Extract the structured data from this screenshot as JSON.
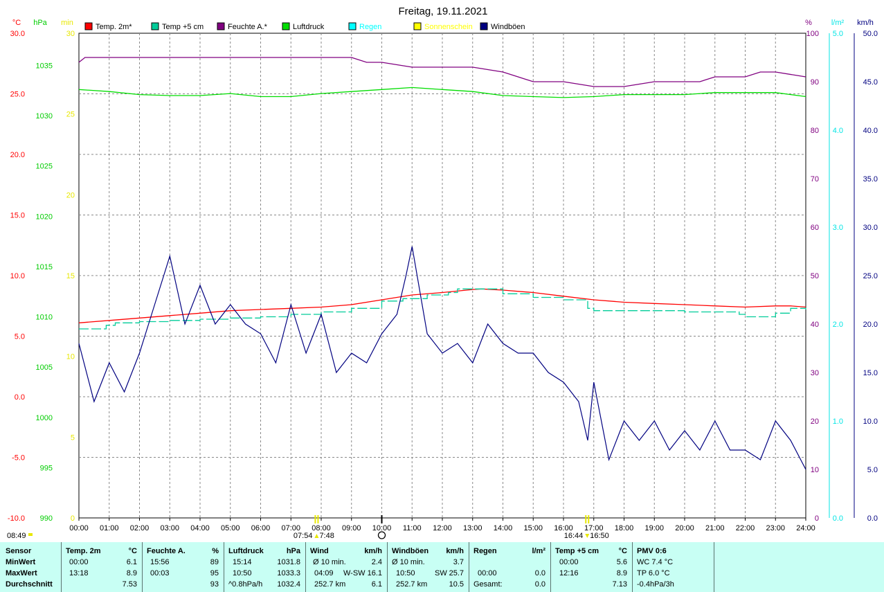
{
  "chart_data": {
    "type": "line",
    "title": "Freitag, 19.11.2021",
    "x_ticks": [
      "00:00",
      "01:00",
      "02:00",
      "03:00",
      "04:00",
      "05:00",
      "06:00",
      "07:00",
      "08:00",
      "09:00",
      "10:00",
      "11:00",
      "12:00",
      "13:00",
      "14:00",
      "15:00",
      "16:00",
      "17:00",
      "18:00",
      "19:00",
      "20:00",
      "21:00",
      "22:00",
      "23:00",
      "24:00"
    ],
    "axes": {
      "temp": {
        "unit": "°C",
        "color": "#ff0000",
        "min": -10,
        "max": 30,
        "ticks": [
          "30.0",
          "25.0",
          "20.0",
          "15.0",
          "10.0",
          "5.0",
          "0.0",
          "-5.0",
          "-10.0"
        ]
      },
      "press": {
        "unit": "hPa",
        "color": "#00cc00",
        "min": 990,
        "max": 1038.2,
        "ticks": [
          "1035",
          "1030",
          "1025",
          "1020",
          "1015",
          "1010",
          "1005",
          "1000",
          "995",
          "990"
        ]
      },
      "min": {
        "unit": "min",
        "color": "#e8e800",
        "min": 0,
        "max": 30,
        "ticks": [
          "30",
          "25",
          "20",
          "15",
          "10",
          "5",
          "0"
        ]
      },
      "hum": {
        "unit": "%",
        "color": "#800080",
        "min": 0,
        "max": 100,
        "ticks": [
          "100",
          "90",
          "80",
          "70",
          "60",
          "50",
          "40",
          "30",
          "20",
          "10",
          "0"
        ]
      },
      "rain": {
        "unit": "l/m²",
        "color": "#00e5e5",
        "min": 0,
        "max": 5,
        "ticks": [
          "5.0",
          "4.0",
          "3.0",
          "2.0",
          "1.0",
          "0.0"
        ]
      },
      "wind": {
        "unit": "km/h",
        "color": "#000080",
        "min": 0,
        "max": 50,
        "ticks": [
          "50.0",
          "45.0",
          "40.0",
          "35.0",
          "30.0",
          "25.0",
          "20.0",
          "15.0",
          "10.0",
          "5.0",
          "0.0"
        ]
      }
    },
    "legend": [
      {
        "name": "Temp. 2m*",
        "color": "#ff0000"
      },
      {
        "name": "Temp +5 cm",
        "color": "#00cc99"
      },
      {
        "name": "Feuchte A.*",
        "color": "#800080"
      },
      {
        "name": "Luftdruck",
        "color": "#00dd00"
      },
      {
        "name": "Regen",
        "color": "#00ffff"
      },
      {
        "name": "Sonnenschein",
        "color": "#ffff00"
      },
      {
        "name": "Windböen",
        "color": "#000080"
      }
    ],
    "series": [
      {
        "name": "Temp. 2m*",
        "axis": "temp",
        "x_hours": [
          0,
          1,
          2,
          3,
          4,
          5,
          6,
          7,
          8,
          9,
          10,
          11,
          12,
          13,
          13.3,
          14,
          15,
          16,
          17,
          18,
          19,
          20,
          21,
          22,
          23,
          23.5,
          24
        ],
        "values": [
          6.1,
          6.3,
          6.5,
          6.7,
          6.9,
          7.1,
          7.2,
          7.3,
          7.4,
          7.6,
          8.0,
          8.4,
          8.6,
          8.85,
          8.9,
          8.8,
          8.6,
          8.3,
          8.0,
          7.8,
          7.7,
          7.6,
          7.5,
          7.4,
          7.5,
          7.5,
          7.4
        ]
      },
      {
        "name": "Temp +5 cm",
        "axis": "temp",
        "step": true,
        "x_hours": [
          0,
          0.9,
          1.2,
          2,
          3,
          4,
          5,
          6,
          7,
          8,
          9,
          10,
          10.7,
          11.5,
          12.2,
          12.5,
          13,
          14,
          15,
          16,
          16.8,
          17,
          18,
          19,
          20,
          21,
          21.8,
          22,
          23,
          23.5,
          24
        ],
        "values": [
          5.6,
          5.9,
          6.1,
          6.2,
          6.3,
          6.4,
          6.5,
          6.6,
          6.8,
          7.0,
          7.3,
          7.9,
          8.1,
          8.4,
          8.6,
          8.9,
          8.9,
          8.5,
          8.2,
          8.0,
          7.3,
          7.1,
          7.1,
          7.1,
          7.0,
          7.0,
          6.8,
          6.6,
          6.9,
          7.3,
          7.2
        ]
      },
      {
        "name": "Feuchte A.*",
        "axis": "hum",
        "x_hours": [
          0,
          0.2,
          1,
          2,
          3,
          4,
          5,
          6,
          7,
          8,
          9,
          9.5,
          10,
          11,
          12,
          13,
          14,
          14.5,
          15,
          16,
          17,
          18,
          19,
          20,
          20.5,
          21,
          22,
          22.5,
          23,
          24
        ],
        "values": [
          94,
          95,
          95,
          95,
          95,
          95,
          95,
          95,
          95,
          95,
          95,
          94,
          94,
          93,
          93,
          93,
          92,
          91,
          90,
          90,
          89,
          89,
          90,
          90,
          90,
          91,
          91,
          92,
          92,
          91
        ]
      },
      {
        "name": "Luftdruck",
        "axis": "press",
        "x_hours": [
          0,
          1,
          2,
          3,
          4,
          5,
          6,
          7,
          8,
          9,
          10,
          11,
          12,
          13,
          14,
          15,
          16,
          17,
          18,
          19,
          20,
          21,
          22,
          23,
          24
        ],
        "values": [
          1032.6,
          1032.4,
          1032.1,
          1032.0,
          1032.0,
          1032.2,
          1031.9,
          1031.9,
          1032.2,
          1032.4,
          1032.6,
          1032.8,
          1032.6,
          1032.4,
          1032.0,
          1031.9,
          1031.8,
          1031.9,
          1032.1,
          1032.1,
          1032.1,
          1032.3,
          1032.3,
          1032.3,
          1031.9
        ]
      },
      {
        "name": "Windböen",
        "axis": "wind",
        "x_hours": [
          0,
          0.5,
          1,
          1.5,
          2,
          2.5,
          3,
          3.5,
          4,
          4.5,
          5,
          5.5,
          6,
          6.5,
          7,
          7.5,
          8,
          8.5,
          9,
          9.5,
          10,
          10.5,
          10.8,
          11,
          11.5,
          12,
          12.5,
          13,
          13.5,
          14,
          14.5,
          15,
          15.5,
          16,
          16.5,
          16.8,
          17,
          17.5,
          18,
          18.5,
          19,
          19.5,
          20,
          20.5,
          21,
          21.5,
          22,
          22.5,
          23,
          23.5,
          24
        ],
        "values": [
          18,
          12,
          16,
          13,
          17,
          22,
          27,
          20,
          24,
          20,
          22,
          20,
          19,
          16,
          22,
          17,
          21,
          15,
          17,
          16,
          19,
          21,
          25,
          28,
          19,
          17,
          18,
          16,
          20,
          18,
          17,
          17,
          15,
          14,
          12,
          8,
          14,
          6,
          10,
          8,
          10,
          7,
          9,
          7,
          10,
          7,
          7,
          6,
          10,
          8,
          5
        ]
      }
    ],
    "markers": [
      {
        "label": "07:54",
        "sym": "sunrise"
      },
      {
        "label": "7:48",
        "sym": "sunrise"
      },
      {
        "label": "16:44",
        "sym": "sunset"
      },
      {
        "label": "16:50",
        "sym": "sunset"
      }
    ],
    "current_time": "08:49"
  },
  "panel": {
    "row_labels": [
      "Sensor",
      "MinWert",
      "MaxWert",
      "Durchschnitt"
    ],
    "temp2m": {
      "header": "Temp. 2m",
      "unit": "°C",
      "rows": [
        [
          "00:00",
          "6.1"
        ],
        [
          "13:18",
          "8.9"
        ],
        [
          "",
          "7.53"
        ]
      ]
    },
    "feuchte": {
      "header": "Feuchte A.",
      "unit": "%",
      "rows": [
        [
          "15:56",
          "89"
        ],
        [
          "00:03",
          "95"
        ],
        [
          "",
          "93"
        ]
      ]
    },
    "luftdruck": {
      "header": "Luftdruck",
      "unit": "hPa",
      "rows": [
        [
          "15:14",
          "1031.8"
        ],
        [
          "10:50",
          "1033.3"
        ],
        [
          "^0.8hPa/h",
          "1032.4"
        ]
      ]
    },
    "wind": {
      "header": "Wind",
      "unit": "km/h",
      "rows": [
        [
          "Ø 10 min.",
          "",
          "2.4"
        ],
        [
          "04:09",
          "W-SW",
          "16.1"
        ],
        [
          "252.7 km",
          "",
          "6.1"
        ]
      ]
    },
    "windboeen": {
      "header": "Windböen",
      "unit": "km/h",
      "rows": [
        [
          "Ø 10 min.",
          "",
          "3.7"
        ],
        [
          "10:50",
          "SW",
          "25.7"
        ],
        [
          "252.7 km",
          "",
          "10.5"
        ]
      ]
    },
    "regen": {
      "header": "Regen",
      "unit": "l/m²",
      "rows": [
        [
          "",
          ""
        ],
        [
          "00:00",
          "0.0"
        ],
        [
          "Gesamt:",
          "0.0"
        ]
      ]
    },
    "temp5": {
      "header": "Temp +5 cm",
      "unit": "°C",
      "rows": [
        [
          "00:00",
          "5.6"
        ],
        [
          "12:16",
          "8.9"
        ],
        [
          "",
          "7.13"
        ]
      ]
    },
    "pmv": {
      "header": "PMV 0:6",
      "rows": [
        "WC 7.4 °C",
        "TP 6.0 °C",
        "-0.4hPa/3h"
      ]
    }
  }
}
